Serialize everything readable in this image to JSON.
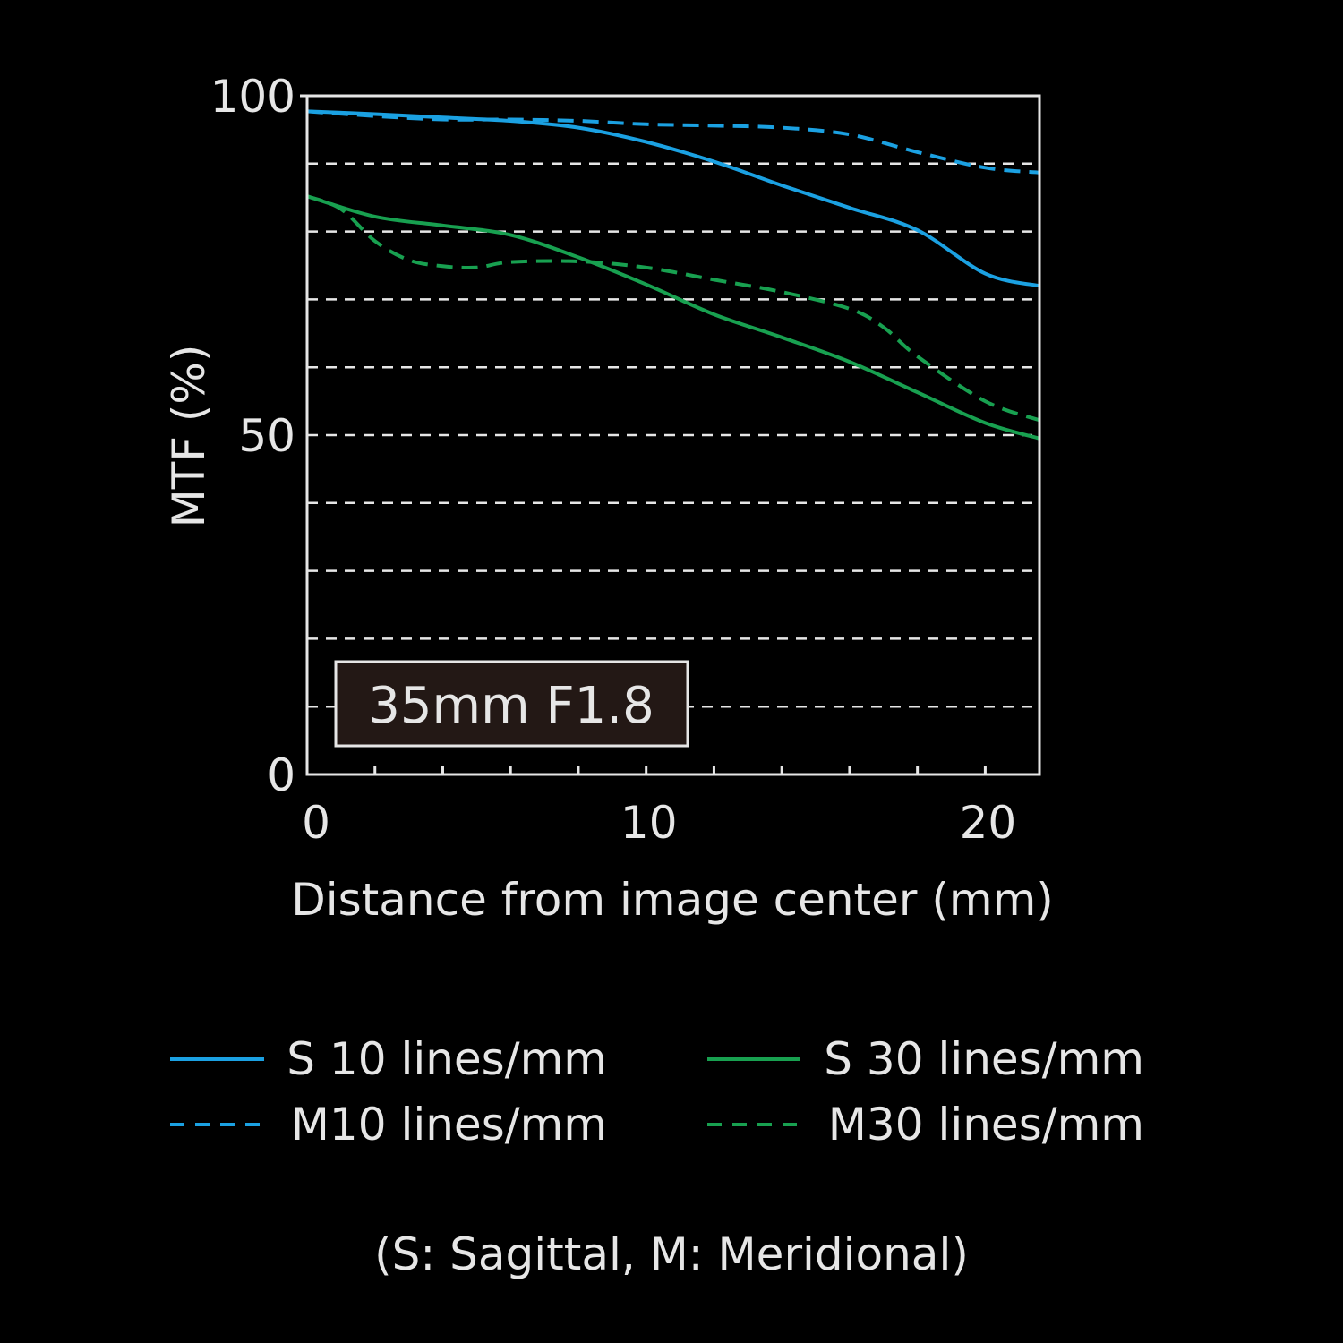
{
  "chart_data": {
    "type": "line",
    "xlabel": "Distance from image center (mm)",
    "ylabel": "MTF (%)",
    "xlim": [
      0,
      21.6
    ],
    "ylim": [
      0,
      100
    ],
    "x_ticks": [
      0,
      10,
      20
    ],
    "y_ticks": [
      0,
      50,
      100
    ],
    "x_minor_step": 2,
    "y_grid_step": 10,
    "grid": "horizontal-dashed",
    "legend_position": "below",
    "annotation": "35mm F1.8",
    "footnote": "(S: Sagittal, M: Meridional)",
    "series": [
      {
        "name": "S 10 lines/mm",
        "color": "#1ba1e2",
        "dashed": false,
        "x": [
          0,
          2,
          4,
          6,
          8,
          10,
          12,
          14,
          16,
          18,
          20,
          21.6
        ],
        "y": [
          97.7,
          97.3,
          96.8,
          96.3,
          95.3,
          93.2,
          90.3,
          86.8,
          83.5,
          80.2,
          73.8,
          72.0
        ]
      },
      {
        "name": "M10 lines/mm",
        "color": "#1ba1e2",
        "dashed": true,
        "x": [
          0,
          2,
          4,
          6,
          8,
          10,
          12,
          14,
          16,
          18,
          20,
          21.6
        ],
        "y": [
          97.7,
          97.0,
          96.5,
          96.5,
          96.3,
          95.8,
          95.6,
          95.3,
          94.3,
          91.7,
          89.4,
          88.7
        ]
      },
      {
        "name": "S 30 lines/mm",
        "color": "#18a050",
        "dashed": false,
        "x": [
          0,
          2,
          4,
          6,
          8,
          10,
          12,
          14,
          16,
          18,
          20,
          21.6
        ],
        "y": [
          85.2,
          82.2,
          80.9,
          79.5,
          76.2,
          72.2,
          67.8,
          64.4,
          60.8,
          56.3,
          51.8,
          49.5
        ]
      },
      {
        "name": "M30 lines/mm",
        "color": "#18a050",
        "dashed": true,
        "x": [
          0,
          1,
          2,
          3,
          4,
          5,
          6,
          8,
          10,
          12,
          14,
          16,
          17,
          18,
          20,
          21.6
        ],
        "y": [
          85.2,
          83.3,
          78.6,
          75.8,
          74.9,
          74.7,
          75.5,
          75.6,
          74.7,
          72.9,
          71.1,
          68.6,
          65.9,
          61.6,
          55.0,
          52.2
        ]
      }
    ]
  }
}
